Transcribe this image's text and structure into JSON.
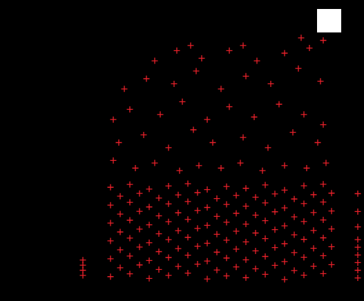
{
  "chart_data": {
    "type": "scatter",
    "xlim": [
      0,
      106
    ],
    "ylim": [
      0,
      100
    ],
    "tick_labels": false,
    "grid": false,
    "series": [
      {
        "color": "#e8212a",
        "marker": "plus",
        "x": [
          15,
          22,
          29,
          36,
          43,
          50,
          57,
          64,
          71,
          78,
          85,
          92,
          18.5,
          25.5,
          32.5,
          39.5,
          46.5,
          53.5,
          60.5,
          67.5,
          74.5,
          81.5,
          88.5,
          95,
          15,
          22,
          29,
          36,
          43,
          50,
          57,
          64,
          71,
          78,
          85,
          92,
          18.5,
          25.5,
          32.5,
          39.5,
          46.5,
          53.5,
          60.5,
          67.5,
          74.5,
          81.5,
          88.5,
          95,
          15,
          22,
          29,
          36,
          43,
          50,
          57,
          64,
          71,
          78,
          85,
          92,
          18.5,
          25.5,
          32.5,
          39.5,
          46.5,
          53.5,
          60.5,
          67.5,
          74.5,
          81.5,
          88.5,
          95,
          15,
          22,
          29,
          36,
          43,
          50,
          57,
          64,
          71,
          78,
          85,
          92,
          18.5,
          25.5,
          32.5,
          39.5,
          46.5,
          53.5,
          60.5,
          67.5,
          74.5,
          81.5,
          88.5,
          95,
          15,
          22,
          29,
          36,
          43,
          50,
          57,
          64,
          71,
          78,
          85,
          92,
          18.5,
          25.5,
          32.5,
          39.5,
          46.5,
          53.5,
          60.5,
          67.5,
          74.5,
          81.5,
          88.5,
          95,
          15,
          22,
          29,
          36,
          43,
          50,
          57,
          64,
          71,
          78,
          85,
          92,
          16,
          24,
          31,
          40,
          47,
          55,
          62,
          70,
          78,
          86,
          93,
          18,
          27,
          36,
          45,
          52,
          63,
          72,
          81,
          90,
          16,
          22,
          33,
          41,
          50,
          58,
          67,
          76,
          85,
          92,
          20,
          28,
          38,
          46,
          55,
          64,
          73,
          83,
          91,
          31,
          39,
          48,
          58,
          68,
          78,
          87,
          92,
          44,
          63,
          84,
          5,
          5,
          5,
          5,
          104.5,
          104.5,
          104.5,
          104.5,
          104.5,
          104.5,
          104.5,
          104.5,
          104.5
        ],
        "values": [
          2.5,
          3.6,
          1.8,
          3,
          3.9,
          1.6,
          2.8,
          2.1,
          3.4,
          1.4,
          3.1,
          3.7,
          6,
          7.1,
          5.3,
          6.5,
          7.4,
          5.1,
          6.3,
          5.6,
          6.9,
          4.9,
          6.6,
          7.2,
          9.5,
          10.6,
          8.8,
          10,
          10.9,
          8.6,
          9.8,
          9.1,
          10.4,
          8.4,
          10.1,
          10.7,
          13,
          14.1,
          12.3,
          13.5,
          14.4,
          12.1,
          13.3,
          12.6,
          13.9,
          11.9,
          13.6,
          14.2,
          16.5,
          17.6,
          15.8,
          17,
          17.9,
          15.6,
          16.8,
          16.1,
          17.4,
          15.4,
          17.1,
          17.7,
          20,
          21.1,
          19.3,
          20.5,
          21.4,
          19.1,
          20.3,
          19.6,
          20.9,
          18.9,
          20.6,
          21.2,
          23.5,
          24.6,
          22.8,
          24,
          24.9,
          22.6,
          23.8,
          23.1,
          24.4,
          22.4,
          24.1,
          24.7,
          27,
          28.1,
          26.3,
          27.5,
          28.4,
          26.1,
          27.3,
          26.6,
          27.9,
          25.9,
          27.6,
          28.2,
          30.5,
          31.6,
          29.8,
          31,
          31.9,
          29.6,
          30.8,
          30.1,
          31.4,
          29.4,
          31.1,
          31.7,
          34,
          35.1,
          33.3,
          34.5,
          35.4,
          33.1,
          34.3,
          33.6,
          34.9,
          32.9,
          34.6,
          35.2,
          37.5,
          38.6,
          36.8,
          38,
          38.9,
          36.6,
          37.8,
          37.1,
          38.4,
          36.4,
          38.1,
          38.7,
          48,
          45,
          47,
          44,
          46,
          45,
          47,
          44,
          46,
          45,
          47,
          55,
          58,
          53,
          60,
          55,
          57,
          53,
          59,
          55,
          64,
          68,
          66,
          71,
          64,
          69,
          65,
          70,
          66,
          62,
          76,
          80,
          78,
          83,
          76,
          81,
          78,
          84,
          79,
          87,
          91,
          88,
          91,
          87,
          90,
          92,
          95,
          93,
          93,
          96,
          3,
          5,
          7,
          9,
          2,
          5,
          8,
          11,
          14,
          17,
          22,
          28,
          35
        ]
      }
    ]
  }
}
